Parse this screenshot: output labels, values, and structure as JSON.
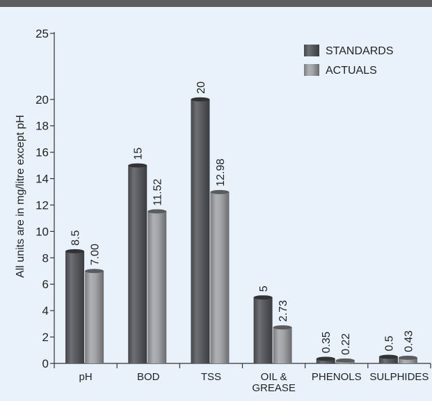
{
  "chart_data": {
    "type": "bar",
    "title": "",
    "xlabel": "",
    "ylabel": "All units are in mg/litre except pH",
    "ylim": [
      0,
      25
    ],
    "yticks": [
      0,
      2,
      4,
      6,
      8,
      10,
      12,
      14,
      16,
      18,
      20,
      25
    ],
    "categories": [
      [
        "pH"
      ],
      [
        "BOD"
      ],
      [
        "TSS"
      ],
      [
        "OIL &",
        "GREASE"
      ],
      [
        "PHENOLS"
      ],
      [
        "SULPHIDES"
      ]
    ],
    "series": [
      {
        "name": "STANDARDS",
        "values": [
          8.5,
          15,
          20,
          5,
          0.35,
          0.5
        ],
        "labels": [
          "8.5",
          "15",
          "20",
          "5",
          "0.35",
          "0.5"
        ],
        "color": "#5a5c61"
      },
      {
        "name": "ACTUALS",
        "values": [
          7.0,
          11.52,
          12.98,
          2.73,
          0.22,
          0.43
        ],
        "labels": [
          "7.00",
          "11.52",
          "12.98",
          "2.73",
          "0.22",
          "0.43"
        ],
        "color": "#a3a5a9"
      }
    ],
    "legend_position": "top-right",
    "grid": false,
    "style": "3d-cylinder"
  }
}
